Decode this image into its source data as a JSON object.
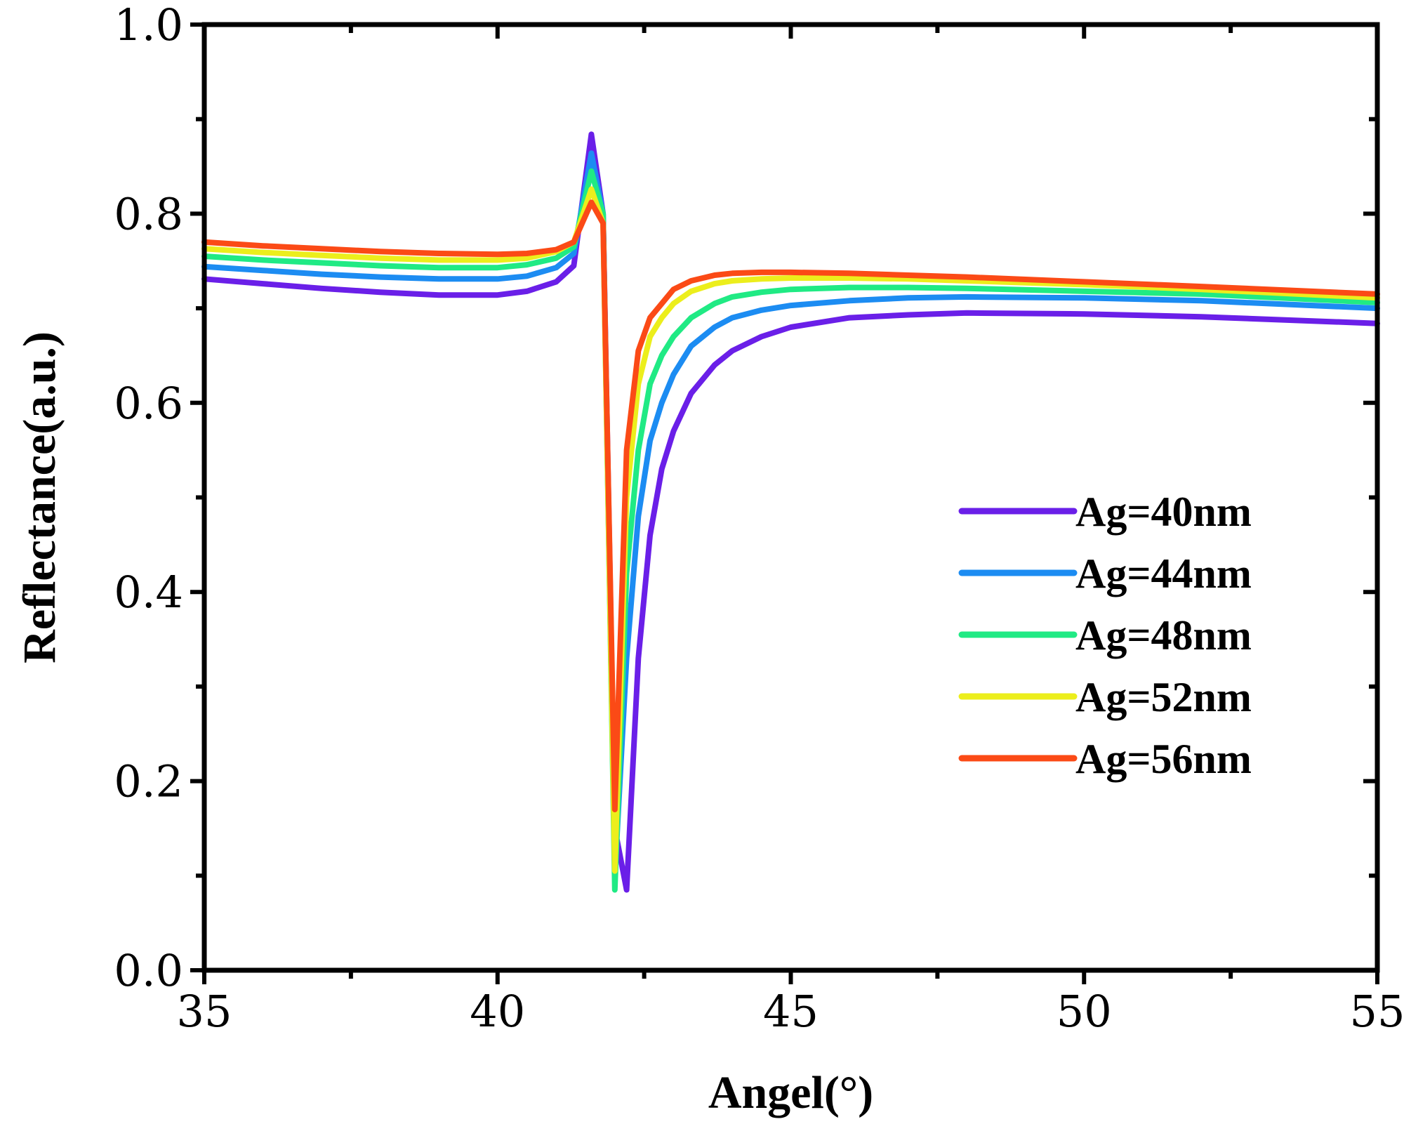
{
  "chart_data": {
    "type": "line",
    "title": "",
    "xlabel": "Angel(°)",
    "ylabel": "Reflectance(a.u.)",
    "xlim": [
      35,
      55
    ],
    "ylim": [
      0.0,
      1.0
    ],
    "xticks": [
      35,
      40,
      45,
      50,
      55
    ],
    "xtick_labels": [
      "35",
      "40",
      "45",
      "50",
      "55"
    ],
    "yticks": [
      0.0,
      0.2,
      0.4,
      0.6,
      0.8,
      1.0
    ],
    "ytick_labels": [
      "0.0",
      "0.2",
      "0.4",
      "0.6",
      "0.8",
      "1.0"
    ],
    "grid": false,
    "legend_position": "center-right",
    "series": [
      {
        "name": "Ag=40nm",
        "color": "#6a1fe8",
        "x": [
          35,
          36,
          37,
          38,
          39,
          40,
          40.5,
          41,
          41.3,
          41.6,
          41.8,
          42.0,
          42.2,
          42.4,
          42.6,
          42.8,
          43.0,
          43.3,
          43.7,
          44,
          44.5,
          45,
          46,
          47,
          48,
          50,
          52,
          55
        ],
        "y": [
          0.731,
          0.726,
          0.721,
          0.717,
          0.714,
          0.714,
          0.718,
          0.728,
          0.745,
          0.884,
          0.8,
          0.15,
          0.085,
          0.33,
          0.46,
          0.53,
          0.57,
          0.61,
          0.64,
          0.655,
          0.67,
          0.68,
          0.69,
          0.693,
          0.695,
          0.694,
          0.691,
          0.684
        ]
      },
      {
        "name": "Ag=44nm",
        "color": "#1c8cf2",
        "x": [
          35,
          36,
          37,
          38,
          39,
          40,
          40.5,
          41,
          41.3,
          41.6,
          41.8,
          42.0,
          42.2,
          42.4,
          42.6,
          42.8,
          43.0,
          43.3,
          43.7,
          44,
          44.5,
          45,
          46,
          47,
          48,
          50,
          52,
          55
        ],
        "y": [
          0.744,
          0.74,
          0.736,
          0.733,
          0.731,
          0.731,
          0.734,
          0.743,
          0.758,
          0.864,
          0.8,
          0.1,
          0.33,
          0.48,
          0.56,
          0.6,
          0.63,
          0.66,
          0.68,
          0.69,
          0.698,
          0.703,
          0.708,
          0.711,
          0.712,
          0.711,
          0.708,
          0.7
        ]
      },
      {
        "name": "Ag=48nm",
        "color": "#20ea84",
        "x": [
          35,
          36,
          37,
          38,
          39,
          40,
          40.5,
          41,
          41.3,
          41.6,
          41.8,
          42.0,
          42.2,
          42.4,
          42.6,
          42.8,
          43.0,
          43.3,
          43.7,
          44,
          44.5,
          45,
          46,
          47,
          48,
          50,
          52,
          55
        ],
        "y": [
          0.755,
          0.751,
          0.748,
          0.745,
          0.743,
          0.743,
          0.746,
          0.753,
          0.765,
          0.845,
          0.8,
          0.085,
          0.42,
          0.55,
          0.62,
          0.65,
          0.67,
          0.69,
          0.705,
          0.712,
          0.717,
          0.72,
          0.722,
          0.722,
          0.721,
          0.718,
          0.715,
          0.706
        ]
      },
      {
        "name": "Ag=52nm",
        "color": "#ecee1c",
        "x": [
          35,
          36,
          37,
          38,
          39,
          40,
          40.5,
          41,
          41.3,
          41.6,
          41.8,
          42.0,
          42.2,
          42.4,
          42.6,
          42.8,
          43.0,
          43.3,
          43.7,
          44,
          44.5,
          45,
          46,
          47,
          48,
          50,
          52,
          55
        ],
        "y": [
          0.763,
          0.759,
          0.756,
          0.753,
          0.751,
          0.751,
          0.753,
          0.76,
          0.77,
          0.826,
          0.79,
          0.105,
          0.5,
          0.62,
          0.67,
          0.69,
          0.705,
          0.718,
          0.726,
          0.729,
          0.731,
          0.732,
          0.732,
          0.731,
          0.729,
          0.725,
          0.72,
          0.711
        ]
      },
      {
        "name": "Ag=56nm",
        "color": "#fb4a16",
        "x": [
          35,
          36,
          37,
          38,
          39,
          40,
          40.5,
          41,
          41.3,
          41.6,
          41.8,
          42.0,
          42.2,
          42.4,
          42.6,
          42.8,
          43.0,
          43.3,
          43.7,
          44,
          44.5,
          45,
          46,
          47,
          48,
          50,
          52,
          55
        ],
        "y": [
          0.77,
          0.766,
          0.763,
          0.76,
          0.758,
          0.757,
          0.758,
          0.762,
          0.77,
          0.812,
          0.79,
          0.17,
          0.55,
          0.655,
          0.69,
          0.705,
          0.72,
          0.729,
          0.735,
          0.737,
          0.738,
          0.738,
          0.737,
          0.735,
          0.733,
          0.728,
          0.723,
          0.715
        ]
      }
    ]
  }
}
